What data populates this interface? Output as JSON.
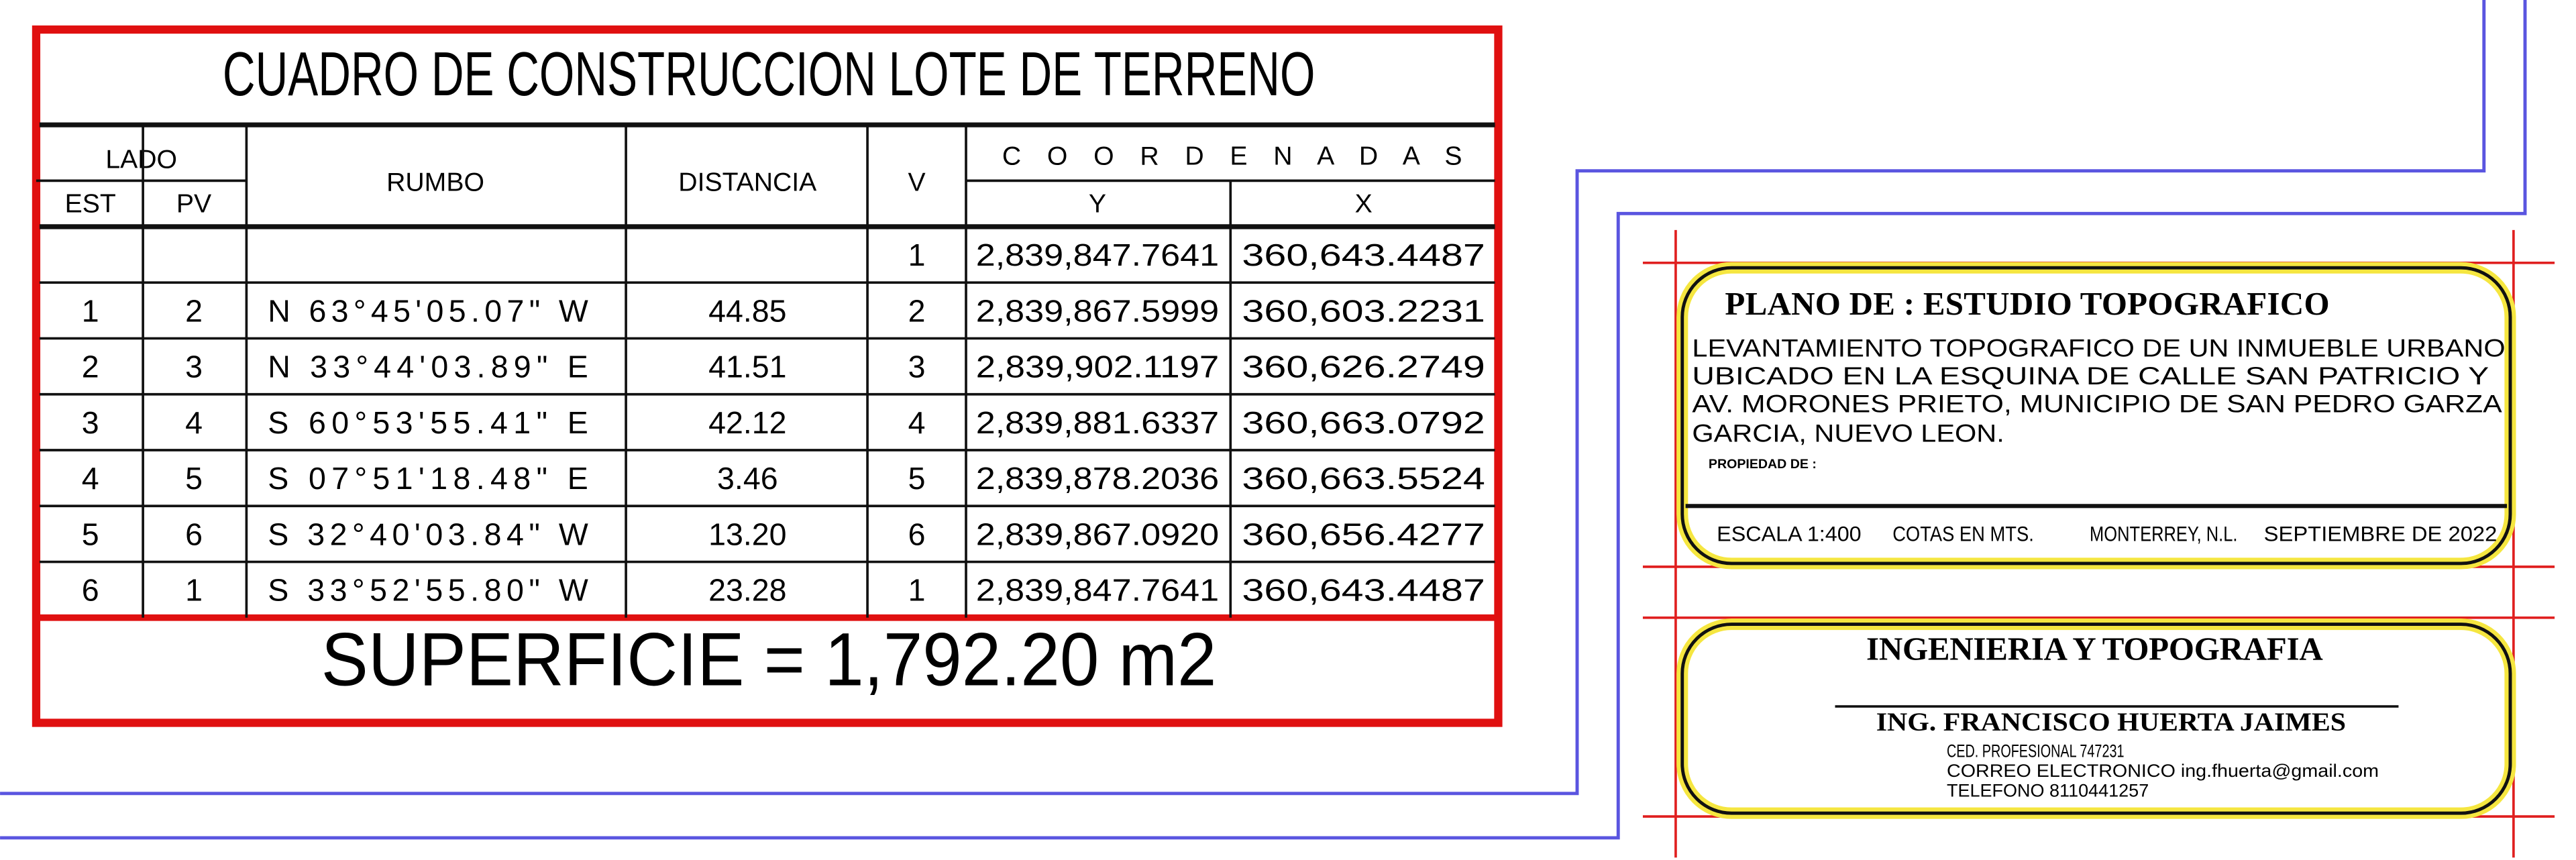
{
  "table": {
    "title": "CUADRO DE CONSTRUCCION LOTE DE TERRENO",
    "headers": {
      "lado": "LADO",
      "est": "EST",
      "pv": "PV",
      "rumbo": "RUMBO",
      "distancia": "DISTANCIA",
      "v": "V",
      "coordenadas": "C O O R D E N A D A S",
      "y": "Y",
      "x": "X"
    },
    "rows": [
      [
        null,
        null,
        null,
        null,
        "1",
        "2,839,847.7641",
        "360,643.4487"
      ],
      [
        "1",
        "2",
        "N 63°45'05.07\" W",
        "44.85",
        "2",
        "2,839,867.5999",
        "360,603.2231"
      ],
      [
        "2",
        "3",
        "N 33°44'03.89\" E",
        "41.51",
        "3",
        "2,839,902.1197",
        "360,626.2749"
      ],
      [
        "3",
        "4",
        "S 60°53'55.41\" E",
        "42.12",
        "4",
        "2,839,881.6337",
        "360,663.0792"
      ],
      [
        "4",
        "5",
        "S 07°51'18.48\" E",
        "3.46",
        "5",
        "2,839,878.2036",
        "360,663.5524"
      ],
      [
        "5",
        "6",
        "S 32°40'03.84\" W",
        "13.20",
        "6",
        "2,839,867.0920",
        "360,656.4277"
      ],
      [
        "6",
        "1",
        "S 33°52'55.80\" W",
        "23.28",
        "1",
        "2,839,847.7641",
        "360,643.4487"
      ]
    ],
    "superficie": "SUPERFICIE = 1,792.20 m2"
  },
  "title_block": {
    "plano": "PLANO DE : ESTUDIO TOPOGRAFICO",
    "description": [
      "LEVANTAMIENTO TOPOGRAFICO DE UN INMUEBLE URBANO",
      "UBICADO EN LA ESQUINA DE CALLE SAN PATRICIO Y",
      "AV. MORONES PRIETO, MUNICIPIO DE SAN PEDRO GARZA",
      "GARCIA, NUEVO LEON."
    ],
    "propiedad": "PROPIEDAD DE :",
    "escala": "ESCALA 1:400",
    "cotas": "COTAS EN MTS.",
    "lugar": "MONTERREY, N.L.",
    "fecha": "SEPTIEMBRE DE 2022",
    "empresa": "INGENIERIA Y TOPOGRAFIA",
    "ingeniero": "ING. FRANCISCO HUERTA JAIMES",
    "cedula": "CED. PROFESIONAL 747231",
    "correo": "CORREO ELECTRONICO ing.fhuerta@gmail.com",
    "telefono": "TELEFONO 8110441257"
  }
}
